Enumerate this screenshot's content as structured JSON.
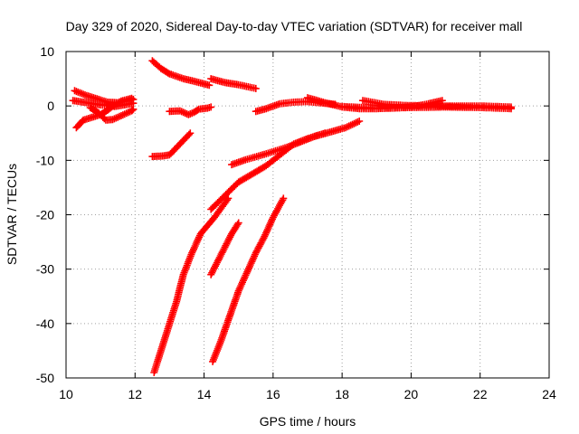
{
  "chart_data": {
    "type": "scatter",
    "title": "Day 329 of 2020, Sidereal Day-to-day VTEC variation (SDTVAR) for receiver mall",
    "xlabel": "GPS time / hours",
    "ylabel": "SDTVAR / TECUs",
    "xlim": [
      10,
      24
    ],
    "ylim": [
      -50,
      10
    ],
    "xticks": [
      10,
      12,
      14,
      16,
      18,
      20,
      22,
      24
    ],
    "yticks": [
      -50,
      -40,
      -30,
      -20,
      -10,
      0,
      10
    ],
    "grid": true,
    "legend": "none",
    "marker": "plus",
    "color": "#ff0000",
    "series": [
      {
        "points": [
          [
            10.25,
            2.8
          ],
          [
            10.6,
            1.9
          ],
          [
            10.9,
            1.3
          ],
          [
            11.2,
            0.7
          ],
          [
            11.5,
            0.6
          ],
          [
            11.8,
            1.0
          ],
          [
            11.95,
            1.2
          ]
        ]
      },
      {
        "points": [
          [
            10.2,
            1.0
          ],
          [
            10.6,
            0.6
          ],
          [
            11.0,
            0.2
          ],
          [
            11.4,
            -0.1
          ],
          [
            11.7,
            0.2
          ],
          [
            11.95,
            0.5
          ]
        ]
      },
      {
        "points": [
          [
            10.3,
            -4.0
          ],
          [
            10.5,
            -2.6
          ],
          [
            10.8,
            -2.0
          ],
          [
            11.0,
            -1.6
          ],
          [
            11.2,
            -0.8
          ],
          [
            11.4,
            0.2
          ],
          [
            11.6,
            0.9
          ],
          [
            11.9,
            1.4
          ]
        ]
      },
      {
        "points": [
          [
            10.7,
            -0.3
          ],
          [
            10.95,
            -1.3
          ],
          [
            11.15,
            -2.6
          ],
          [
            11.35,
            -2.5
          ],
          [
            11.6,
            -1.8
          ],
          [
            11.9,
            -0.9
          ],
          [
            11.95,
            -0.6
          ]
        ]
      },
      {
        "points": [
          [
            12.5,
            8.3
          ],
          [
            12.75,
            6.9
          ],
          [
            13.0,
            5.9
          ],
          [
            13.4,
            5.0
          ],
          [
            13.8,
            4.4
          ],
          [
            14.15,
            3.8
          ]
        ]
      },
      {
        "points": [
          [
            14.2,
            5.0
          ],
          [
            14.6,
            4.3
          ],
          [
            15.0,
            3.9
          ],
          [
            15.5,
            3.2
          ]
        ]
      },
      {
        "points": [
          [
            13.0,
            -1.0
          ],
          [
            13.3,
            -0.9
          ],
          [
            13.55,
            -1.6
          ],
          [
            13.7,
            -1.2
          ],
          [
            13.85,
            -0.6
          ],
          [
            14.1,
            -0.4
          ],
          [
            14.2,
            -0.2
          ]
        ]
      },
      {
        "points": [
          [
            12.5,
            -9.3
          ],
          [
            12.8,
            -9.2
          ],
          [
            13.0,
            -9.0
          ],
          [
            13.3,
            -7.0
          ],
          [
            13.6,
            -5.0
          ]
        ]
      },
      {
        "points": [
          [
            15.5,
            -1.0
          ],
          [
            15.8,
            -0.5
          ],
          [
            16.2,
            0.4
          ],
          [
            16.6,
            0.7
          ],
          [
            17.0,
            0.8
          ],
          [
            17.5,
            0.5
          ],
          [
            17.8,
            0.3
          ]
        ]
      },
      {
        "points": [
          [
            17.0,
            1.5
          ],
          [
            17.5,
            0.6
          ],
          [
            18.0,
            -0.2
          ],
          [
            18.5,
            -0.5
          ],
          [
            19.0,
            -0.5
          ],
          [
            19.5,
            -0.4
          ],
          [
            20.0,
            -0.2
          ],
          [
            20.5,
            0.4
          ],
          [
            20.9,
            1.0
          ]
        ]
      },
      {
        "points": [
          [
            18.6,
            1.0
          ],
          [
            19.2,
            0.3
          ],
          [
            19.8,
            0.1
          ],
          [
            20.5,
            0.0
          ],
          [
            21.2,
            0.0
          ],
          [
            22.0,
            0.0
          ],
          [
            22.9,
            -0.2
          ]
        ]
      },
      {
        "points": [
          [
            18.0,
            -0.1
          ],
          [
            19.0,
            -0.4
          ],
          [
            20.0,
            -0.3
          ],
          [
            21.0,
            -0.2
          ],
          [
            22.0,
            -0.3
          ],
          [
            22.9,
            -0.5
          ]
        ]
      },
      {
        "points": [
          [
            14.8,
            -10.8
          ],
          [
            15.2,
            -9.9
          ],
          [
            15.8,
            -8.8
          ],
          [
            16.4,
            -7.6
          ],
          [
            16.8,
            -6.6
          ],
          [
            17.2,
            -5.6
          ],
          [
            17.6,
            -4.9
          ],
          [
            18.1,
            -4.0
          ],
          [
            18.5,
            -2.8
          ]
        ]
      },
      {
        "points": [
          [
            14.2,
            -19.0
          ],
          [
            14.6,
            -16.5
          ],
          [
            15.0,
            -14.0
          ],
          [
            15.4,
            -12.5
          ],
          [
            15.8,
            -11.0
          ],
          [
            16.2,
            -9.0
          ],
          [
            16.6,
            -7.0
          ],
          [
            17.0,
            -6.0
          ],
          [
            17.5,
            -5.0
          ]
        ]
      },
      {
        "points": [
          [
            12.55,
            -49.0
          ],
          [
            12.8,
            -44.0
          ],
          [
            13.0,
            -40.0
          ],
          [
            13.2,
            -36.0
          ],
          [
            13.4,
            -31.0
          ],
          [
            13.65,
            -27.0
          ],
          [
            13.9,
            -23.5
          ],
          [
            14.1,
            -22.0
          ],
          [
            14.3,
            -20.5
          ],
          [
            14.7,
            -17.0
          ]
        ]
      },
      {
        "points": [
          [
            14.2,
            -31.0
          ],
          [
            14.4,
            -28.5
          ],
          [
            14.6,
            -26.0
          ],
          [
            14.8,
            -23.5
          ],
          [
            15.0,
            -21.5
          ]
        ]
      },
      {
        "points": [
          [
            14.25,
            -47.0
          ],
          [
            14.5,
            -43.0
          ],
          [
            14.75,
            -38.5
          ],
          [
            15.0,
            -34.0
          ],
          [
            15.25,
            -30.5
          ],
          [
            15.5,
            -27.0
          ],
          [
            15.75,
            -24.0
          ],
          [
            16.0,
            -20.5
          ],
          [
            16.3,
            -17.0
          ]
        ]
      }
    ]
  }
}
